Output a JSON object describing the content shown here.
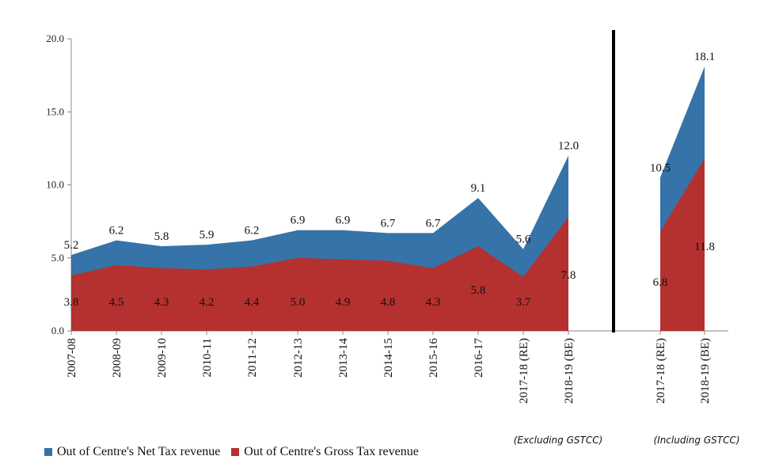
{
  "chart_data": {
    "type": "area",
    "stacked": false,
    "ylim": [
      0,
      20
    ],
    "yticks": [
      "0.0",
      "5.0",
      "10.0",
      "15.0",
      "20.0"
    ],
    "grid": false,
    "legend_position": "bottom-left",
    "colors": {
      "net": "#3573a8",
      "gross": "#b4312f"
    },
    "panels": [
      {
        "note": "(Excluding GSTCC)",
        "categories": [
          "2007-08",
          "2008-09",
          "2009-10",
          "2010-11",
          "2011-12",
          "2012-13",
          "2013-14",
          "2014-15",
          "2015-16",
          "2016-17",
          "2017-18 (RE)",
          "2018-19 (BE)"
        ],
        "series": [
          {
            "name": "Out of Centre's Net Tax revenue",
            "values": [
              5.2,
              6.2,
              5.8,
              5.9,
              6.2,
              6.9,
              6.9,
              6.7,
              6.7,
              9.1,
              5.6,
              12.0
            ],
            "labels": [
              "5.2",
              "6.2",
              "5.8",
              "5.9",
              "6.2",
              "6.9",
              "6.9",
              "6.7",
              "6.7",
              "9.1",
              "5.6",
              "12.0"
            ]
          },
          {
            "name": "Out of Centre's Gross Tax revenue",
            "values": [
              3.8,
              4.5,
              4.3,
              4.2,
              4.4,
              5.0,
              4.9,
              4.8,
              4.3,
              5.8,
              3.7,
              7.8
            ],
            "labels": [
              "3.8",
              "4.5",
              "4.3",
              "4.2",
              "4.4",
              "5.0",
              "4.9",
              "4.8",
              "4.3",
              "5.8",
              "3.7",
              "7.8"
            ]
          }
        ]
      },
      {
        "note": "(Including GSTCC)",
        "categories": [
          "2017-18 (RE)",
          "2018-19 (BE)"
        ],
        "series": [
          {
            "name": "Out of Centre's Net Tax revenue",
            "values": [
              10.5,
              18.1
            ],
            "labels": [
              "10.5",
              "18.1"
            ]
          },
          {
            "name": "Out of Centre's Gross Tax revenue",
            "values": [
              6.8,
              11.8
            ],
            "labels": [
              "6.8",
              "11.8"
            ]
          }
        ]
      }
    ]
  },
  "legend": {
    "net": "Out of Centre's Net Tax revenue",
    "gross": "Out of Centre's Gross Tax revenue"
  }
}
